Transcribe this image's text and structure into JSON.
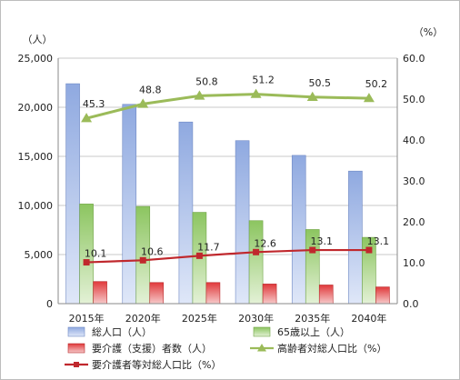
{
  "chart_data": {
    "type": "bar",
    "categories": [
      "2015年",
      "2020年",
      "2025年",
      "2030年",
      "2035年",
      "2040年"
    ],
    "left_axis": {
      "unit": "（人）",
      "ylim": [
        0,
        25000
      ],
      "ticks": [
        "0",
        "5,000",
        "10,000",
        "15,000",
        "20,000",
        "25,000"
      ]
    },
    "right_axis": {
      "unit": "（%）",
      "ylim": [
        0,
        60
      ],
      "ticks": [
        "0.0",
        "10.0",
        "20.0",
        "30.0",
        "40.0",
        "50.0",
        "60.0"
      ]
    },
    "series": [
      {
        "name": "総人口（人）",
        "type": "bar",
        "axis": "left",
        "color": "#8fa9e0",
        "values": [
          22400,
          20300,
          18500,
          16600,
          15100,
          13500
        ]
      },
      {
        "name": "65歳以上（人）",
        "type": "bar",
        "axis": "left",
        "color": "#8cc560",
        "values": [
          10150,
          9900,
          9300,
          8450,
          7550,
          6750
        ]
      },
      {
        "name": "要介護（支援）者数（人）",
        "type": "bar",
        "axis": "left",
        "color": "#e0393b",
        "values": [
          2250,
          2150,
          2150,
          2000,
          1900,
          1700
        ]
      },
      {
        "name": "高齢者対総人口比（%）",
        "type": "line",
        "axis": "right",
        "color": "#9bbb59",
        "values": [
          45.3,
          48.8,
          50.8,
          51.2,
          50.5,
          50.2
        ],
        "labels": [
          "45.3",
          "48.8",
          "50.8",
          "51.2",
          "50.5",
          "50.2"
        ]
      },
      {
        "name": "要介護者等対総人口比（%）",
        "type": "line",
        "axis": "right",
        "color": "#c0282d",
        "values": [
          10.1,
          10.6,
          11.7,
          12.6,
          13.1,
          13.1
        ],
        "labels": [
          "10.1",
          "10.6",
          "11.7",
          "12.6",
          "13.1",
          "13.1"
        ]
      }
    ],
    "grid": true,
    "legend_position": "bottom"
  }
}
